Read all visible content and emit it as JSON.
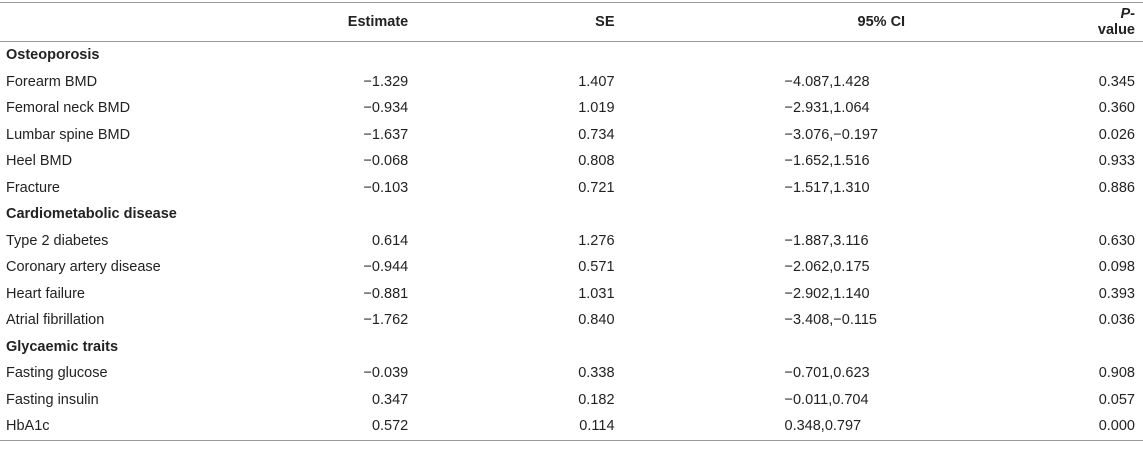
{
  "header": {
    "label": "",
    "estimate": "Estimate",
    "se": "SE",
    "ci": "95% CI",
    "p_italic": "P",
    "p_rest": "-value"
  },
  "rows": [
    {
      "type": "section",
      "label": "Osteoporosis"
    },
    {
      "type": "data",
      "label": "Forearm BMD",
      "estimate": "−1.329",
      "se": "1.407",
      "ci": "−4.087,1.428",
      "p": "0.345"
    },
    {
      "type": "data",
      "label": "Femoral neck BMD",
      "estimate": "−0.934",
      "se": "1.019",
      "ci": "−2.931,1.064",
      "p": "0.360"
    },
    {
      "type": "data",
      "label": "Lumbar spine BMD",
      "estimate": "−1.637",
      "se": "0.734",
      "ci": "−3.076,−0.197",
      "p": "0.026"
    },
    {
      "type": "data",
      "label": "Heel BMD",
      "estimate": "−0.068",
      "se": "0.808",
      "ci": "−1.652,1.516",
      "p": "0.933"
    },
    {
      "type": "data",
      "label": "Fracture",
      "estimate": "−0.103",
      "se": "0.721",
      "ci": "−1.517,1.310",
      "p": "0.886"
    },
    {
      "type": "section",
      "label": "Cardiometabolic disease"
    },
    {
      "type": "data",
      "label": "Type 2 diabetes",
      "estimate": "0.614",
      "se": "1.276",
      "ci": "−1.887,3.116",
      "p": "0.630"
    },
    {
      "type": "data",
      "label": "Coronary artery disease",
      "estimate": "−0.944",
      "se": "0.571",
      "ci": "−2.062,0.175",
      "p": "0.098"
    },
    {
      "type": "data",
      "label": "Heart failure",
      "estimate": "−0.881",
      "se": "1.031",
      "ci": "−2.902,1.140",
      "p": "0.393"
    },
    {
      "type": "data",
      "label": "Atrial fibrillation",
      "estimate": "−1.762",
      "se": "0.840",
      "ci": "−3.408,−0.115",
      "p": "0.036"
    },
    {
      "type": "section",
      "label": "Glycaemic traits"
    },
    {
      "type": "data",
      "label": "Fasting glucose",
      "estimate": "−0.039",
      "se": "0.338",
      "ci": "−0.701,0.623",
      "p": "0.908"
    },
    {
      "type": "data",
      "label": "Fasting insulin",
      "estimate": "0.347",
      "se": "0.182",
      "ci": "−0.011,0.704",
      "p": "0.057"
    },
    {
      "type": "data",
      "label": "HbA1c",
      "estimate": "0.572",
      "se": "0.114",
      "ci": "0.348,0.797",
      "p": "0.000"
    }
  ]
}
